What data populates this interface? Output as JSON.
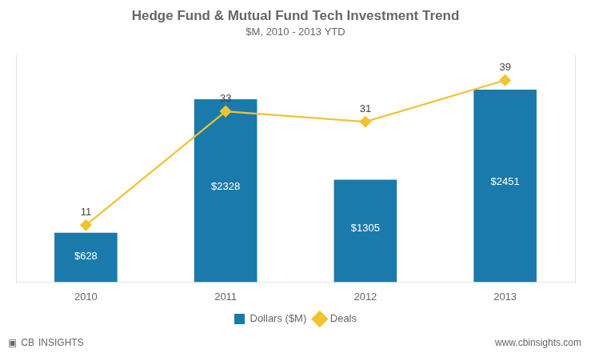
{
  "chart_data": {
    "type": "bar",
    "title": "Hedge Fund & Mutual Fund Tech Investment Trend",
    "subtitle": "$M, 2010 - 2013 YTD",
    "categories": [
      "2010",
      "2011",
      "2012",
      "2013"
    ],
    "series": [
      {
        "name": "Dollars ($M)",
        "color": "#1a7aab",
        "values": [
          628,
          2328,
          1305,
          2451
        ],
        "value_labels": [
          "$628",
          "$2328",
          "$1305",
          "$2451"
        ]
      },
      {
        "name": "Deals",
        "type": "line",
        "axis": "y2",
        "color": "#f0c330",
        "marker": "diamond",
        "values": [
          11,
          33,
          31,
          39
        ]
      }
    ],
    "ylim": [
      0,
      2900
    ],
    "y2lim": [
      0,
      44
    ],
    "data_labels": true,
    "tick_labels": "x",
    "grid": false,
    "legend": "bottom",
    "annotations": [
      "▣",
      "CB",
      "INSIGHTS",
      "www.cbinsights.com"
    ]
  }
}
